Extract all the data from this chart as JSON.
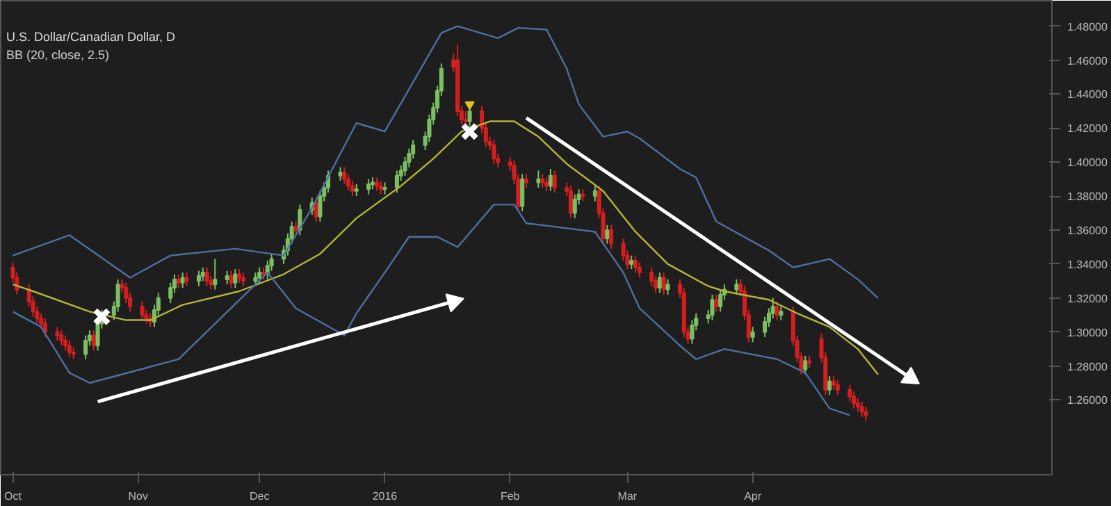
{
  "chart_data": {
    "type": "candlestick",
    "title": "U.S. Dollar/Canadian Dollar, D",
    "subtitle": "BB (20, close, 2.5)",
    "colors": [
      "#d41f1f",
      "#d41f1f",
      "#d41f1f",
      "#d41f1f",
      "#d41f1f",
      "#d41f1f",
      "#d41f1f",
      "#d41f1f",
      "#d41f1f",
      "#d41f1f",
      "#d41f1f",
      "#d41f1f",
      "#7bbf63",
      "#7bbf63",
      "#d41f1f",
      "#7bbf63",
      "#7bbf63",
      "#7bbf63",
      "#7bbf63",
      "#d41f1f",
      "#d41f1f",
      "#d41f1f",
      "#d41f1f",
      "#d41f1f",
      "#d41f1f",
      "#7bbf63",
      "#7bbf63",
      "#7bbf63",
      "#7bbf63",
      "#d41f1f",
      "#7bbf63",
      "#d41f1f",
      "#7bbf63",
      "#7bbf63",
      "#d41f1f",
      "#d41f1f",
      "#7bbf63",
      "#7bbf63",
      "#d41f1f",
      "#7bbf63",
      "#d41f1f",
      "#d41f1f",
      "#7bbf63",
      "#7bbf63",
      "#d41f1f",
      "#7bbf63",
      "#7bbf63",
      "#7bbf63",
      "#7bbf63",
      "#7bbf63",
      "#d41f1f",
      "#7bbf63",
      "#7bbf63",
      "#d41f1f",
      "#7bbf63",
      "#7bbf63",
      "#7bbf63",
      "#7bbf63",
      "#d41f1f",
      "#d41f1f",
      "#d41f1f",
      "#7bbf63",
      "#7bbf63",
      "#7bbf63",
      "#d41f1f",
      "#d41f1f",
      "#7bbf63",
      "#7bbf63",
      "#7bbf63",
      "#7bbf63",
      "#7bbf63",
      "#7bbf63",
      "#7bbf63",
      "#7bbf63",
      "#7bbf63",
      "#7bbf63",
      "#7bbf63",
      "#d41f1f",
      "#d41f1f",
      "#d41f1f",
      "#d41f1f",
      "#7bbf63",
      "#d41f1f",
      "#d41f1f",
      "#d41f1f",
      "#d41f1f",
      "#d41f1f",
      "#d41f1f",
      "#d41f1f",
      "#d41f1f",
      "#7bbf63",
      "#d41f1f",
      "#7bbf63",
      "#d41f1f",
      "#d41f1f",
      "#7bbf63",
      "#d41f1f",
      "#d41f1f",
      "#d41f1f",
      "#7bbf63",
      "#7bbf63",
      "#d41f1f",
      "#7bbf63",
      "#d41f1f",
      "#d41f1f",
      "#7bbf63",
      "#d41f1f",
      "#d41f1f",
      "#d41f1f",
      "#7bbf63",
      "#d41f1f",
      "#d41f1f",
      "#d41f1f",
      "#d41f1f",
      "#7bbf63",
      "#d41f1f",
      "#7bbf63",
      "#d41f1f",
      "#d41f1f",
      "#d41f1f",
      "#7bbf63",
      "#7bbf63",
      "#7bbf63",
      "#7bbf63",
      "#d41f1f",
      "#7bbf63",
      "#7bbf63",
      "#7bbf63",
      "#d41f1f",
      "#d41f1f",
      "#d41f1f",
      "#7bbf63",
      "#7bbf63",
      "#7bbf63",
      "#7bbf63",
      "#d41f1f",
      "#7bbf63",
      "#d41f1f",
      "#d41f1f",
      "#d41f1f",
      "#7bbf63",
      "#d41f1f",
      "#d41f1f",
      "#d41f1f",
      "#7bbf63",
      "#d41f1f",
      "#d41f1f",
      "#d41f1f",
      "#d41f1f",
      "#d41f1f",
      "#d41f1f",
      "#d41f1f"
    ],
    "x": [
      "2015-10-01",
      "2015-10-02",
      "2015-10-05",
      "2015-10-06",
      "2015-10-07",
      "2015-10-08",
      "2015-10-09",
      "2015-10-12",
      "2015-10-13",
      "2015-10-14",
      "2015-10-15",
      "2015-10-16",
      "2015-10-19",
      "2015-10-20",
      "2015-10-21",
      "2015-10-22",
      "2015-10-23",
      "2015-10-26",
      "2015-10-27",
      "2015-10-28",
      "2015-10-29",
      "2015-10-30",
      "2015-11-02",
      "2015-11-03",
      "2015-11-04",
      "2015-11-05",
      "2015-11-06",
      "2015-11-09",
      "2015-11-10",
      "2015-11-11",
      "2015-11-12",
      "2015-11-13",
      "2015-11-16",
      "2015-11-17",
      "2015-11-18",
      "2015-11-19",
      "2015-11-20",
      "2015-11-23",
      "2015-11-24",
      "2015-11-25",
      "2015-11-26",
      "2015-11-27",
      "2015-11-30",
      "2015-12-01",
      "2015-12-02",
      "2015-12-03",
      "2015-12-04",
      "2015-12-07",
      "2015-12-08",
      "2015-12-09",
      "2015-12-10",
      "2015-12-11",
      "2015-12-14",
      "2015-12-15",
      "2015-12-16",
      "2015-12-17",
      "2015-12-18",
      "2015-12-21",
      "2015-12-22",
      "2015-12-23",
      "2015-12-24",
      "2015-12-25",
      "2015-12-28",
      "2015-12-29",
      "2015-12-30",
      "2015-12-31",
      "2016-01-01",
      "2016-01-04",
      "2016-01-05",
      "2016-01-06",
      "2016-01-07",
      "2016-01-08",
      "2016-01-11",
      "2016-01-12",
      "2016-01-13",
      "2016-01-14",
      "2016-01-15",
      "2016-01-18",
      "2016-01-19",
      "2016-01-20",
      "2016-01-21",
      "2016-01-22",
      "2016-01-25",
      "2016-01-26",
      "2016-01-27",
      "2016-01-28",
      "2016-01-29",
      "2016-02-01",
      "2016-02-02",
      "2016-02-03",
      "2016-02-04",
      "2016-02-05",
      "2016-02-08",
      "2016-02-09",
      "2016-02-10",
      "2016-02-11",
      "2016-02-12",
      "2016-02-15",
      "2016-02-16",
      "2016-02-17",
      "2016-02-18",
      "2016-02-19",
      "2016-02-22",
      "2016-02-23",
      "2016-02-24",
      "2016-02-25",
      "2016-02-26",
      "2016-02-29",
      "2016-03-01",
      "2016-03-02",
      "2016-03-03",
      "2016-03-04",
      "2016-03-07",
      "2016-03-08",
      "2016-03-09",
      "2016-03-10",
      "2016-03-11",
      "2016-03-14",
      "2016-03-15",
      "2016-03-16",
      "2016-03-17",
      "2016-03-18",
      "2016-03-21",
      "2016-03-22",
      "2016-03-23",
      "2016-03-24",
      "2016-03-25",
      "2016-03-28",
      "2016-03-29",
      "2016-03-30",
      "2016-03-31",
      "2016-04-01",
      "2016-04-04",
      "2016-04-05",
      "2016-04-06",
      "2016-04-07",
      "2016-04-08",
      "2016-04-11",
      "2016-04-12",
      "2016-04-13",
      "2016-04-14",
      "2016-04-15",
      "2016-04-18",
      "2016-04-19",
      "2016-04-20",
      "2016-04-21",
      "2016-04-22",
      "2016-04-25",
      "2016-04-26",
      "2016-04-27",
      "2016-04-28",
      "2016-04-29"
    ],
    "ohlc": [
      [
        1.338,
        1.341,
        1.329,
        1.332
      ],
      [
        1.332,
        1.335,
        1.322,
        1.325
      ],
      [
        1.325,
        1.328,
        1.315,
        1.318
      ],
      [
        1.318,
        1.321,
        1.309,
        1.312
      ],
      [
        1.312,
        1.315,
        1.305,
        1.308
      ],
      [
        1.308,
        1.311,
        1.302,
        1.305
      ],
      [
        1.305,
        1.308,
        1.297,
        1.3
      ],
      [
        1.3,
        1.303,
        1.295,
        1.298
      ],
      [
        1.298,
        1.301,
        1.292,
        1.295
      ],
      [
        1.295,
        1.298,
        1.289,
        1.292
      ],
      [
        1.292,
        1.295,
        1.285,
        1.288
      ],
      [
        1.288,
        1.291,
        1.284,
        1.287
      ],
      [
        1.287,
        1.298,
        1.284,
        1.295
      ],
      [
        1.295,
        1.301,
        1.292,
        1.298
      ],
      [
        1.298,
        1.301,
        1.289,
        1.292
      ],
      [
        1.292,
        1.308,
        1.289,
        1.305
      ],
      [
        1.305,
        1.313,
        1.302,
        1.31
      ],
      [
        1.31,
        1.318,
        1.307,
        1.315
      ],
      [
        1.315,
        1.331,
        1.312,
        1.328
      ],
      [
        1.328,
        1.331,
        1.323,
        1.326
      ],
      [
        1.326,
        1.329,
        1.317,
        1.32
      ],
      [
        1.32,
        1.323,
        1.312,
        1.315
      ],
      [
        1.315,
        1.318,
        1.307,
        1.31
      ],
      [
        1.31,
        1.313,
        1.305,
        1.308
      ],
      [
        1.308,
        1.311,
        1.303,
        1.306
      ],
      [
        1.306,
        1.316,
        1.303,
        1.313
      ],
      [
        1.313,
        1.323,
        1.31,
        1.32
      ],
      [
        1.32,
        1.329,
        1.317,
        1.326
      ],
      [
        1.326,
        1.334,
        1.323,
        1.331
      ],
      [
        1.331,
        1.334,
        1.326,
        1.329
      ],
      [
        1.329,
        1.335,
        1.326,
        1.332
      ],
      [
        1.332,
        1.335,
        1.327,
        1.33
      ],
      [
        1.33,
        1.336,
        1.327,
        1.333
      ],
      [
        1.333,
        1.338,
        1.33,
        1.335
      ],
      [
        1.335,
        1.338,
        1.327,
        1.33
      ],
      [
        1.33,
        1.333,
        1.325,
        1.328
      ],
      [
        1.328,
        1.343,
        1.325,
        1.331
      ],
      [
        1.331,
        1.336,
        1.328,
        1.333
      ],
      [
        1.333,
        1.336,
        1.326,
        1.329
      ],
      [
        1.329,
        1.337,
        1.326,
        1.334
      ],
      [
        1.334,
        1.337,
        1.329,
        1.332
      ],
      [
        1.332,
        1.335,
        1.327,
        1.33
      ],
      [
        1.33,
        1.335,
        1.327,
        1.332
      ],
      [
        1.332,
        1.338,
        1.329,
        1.335
      ],
      [
        1.335,
        1.338,
        1.331,
        1.334
      ],
      [
        1.334,
        1.342,
        1.331,
        1.339
      ],
      [
        1.339,
        1.346,
        1.336,
        1.343
      ],
      [
        1.343,
        1.351,
        1.34,
        1.348
      ],
      [
        1.348,
        1.358,
        1.345,
        1.355
      ],
      [
        1.355,
        1.365,
        1.352,
        1.362
      ],
      [
        1.362,
        1.365,
        1.357,
        1.36
      ],
      [
        1.36,
        1.375,
        1.357,
        1.372
      ],
      [
        1.372,
        1.379,
        1.369,
        1.376
      ],
      [
        1.376,
        1.379,
        1.365,
        1.368
      ],
      [
        1.368,
        1.383,
        1.365,
        1.38
      ],
      [
        1.38,
        1.388,
        1.377,
        1.385
      ],
      [
        1.385,
        1.395,
        1.382,
        1.392
      ],
      [
        1.392,
        1.397,
        1.389,
        1.394
      ],
      [
        1.394,
        1.397,
        1.387,
        1.39
      ],
      [
        1.39,
        1.393,
        1.383,
        1.386
      ],
      [
        1.386,
        1.389,
        1.38,
        1.383
      ],
      [
        1.383,
        1.387,
        1.38,
        1.384
      ],
      [
        1.384,
        1.39,
        1.381,
        1.387
      ],
      [
        1.387,
        1.391,
        1.384,
        1.388
      ],
      [
        1.388,
        1.391,
        1.383,
        1.386
      ],
      [
        1.386,
        1.389,
        1.381,
        1.384
      ],
      [
        1.384,
        1.388,
        1.381,
        1.385
      ],
      [
        1.385,
        1.395,
        1.382,
        1.392
      ],
      [
        1.392,
        1.398,
        1.389,
        1.395
      ],
      [
        1.395,
        1.403,
        1.392,
        1.4
      ],
      [
        1.4,
        1.408,
        1.397,
        1.405
      ],
      [
        1.405,
        1.413,
        1.402,
        1.41
      ],
      [
        1.41,
        1.418,
        1.407,
        1.415
      ],
      [
        1.415,
        1.428,
        1.412,
        1.425
      ],
      [
        1.425,
        1.435,
        1.422,
        1.432
      ],
      [
        1.432,
        1.445,
        1.429,
        1.442
      ],
      [
        1.442,
        1.458,
        1.439,
        1.455
      ],
      [
        1.46,
        1.464,
        1.453,
        1.456
      ],
      [
        1.46,
        1.469,
        1.427,
        1.43
      ],
      [
        1.43,
        1.433,
        1.422,
        1.425
      ],
      [
        1.425,
        1.43,
        1.42,
        1.424
      ],
      [
        1.424,
        1.433,
        1.421,
        1.43
      ],
      [
        1.43,
        1.433,
        1.417,
        1.42
      ],
      [
        1.42,
        1.423,
        1.409,
        1.412
      ],
      [
        1.412,
        1.415,
        1.407,
        1.41
      ],
      [
        1.41,
        1.413,
        1.399,
        1.402
      ],
      [
        1.402,
        1.405,
        1.397,
        1.4
      ],
      [
        1.4,
        1.403,
        1.395,
        1.398
      ],
      [
        1.398,
        1.401,
        1.387,
        1.39
      ],
      [
        1.39,
        1.393,
        1.371,
        1.374
      ],
      [
        1.374,
        1.393,
        1.371,
        1.39
      ],
      [
        1.39,
        1.393,
        1.385,
        1.388
      ],
      [
        1.388,
        1.395,
        1.385,
        1.39
      ],
      [
        1.39,
        1.393,
        1.385,
        1.388
      ],
      [
        1.388,
        1.391,
        1.383,
        1.386
      ],
      [
        1.386,
        1.396,
        1.383,
        1.392
      ],
      [
        1.392,
        1.395,
        1.382,
        1.385
      ],
      [
        1.385,
        1.388,
        1.38,
        1.383
      ],
      [
        1.383,
        1.386,
        1.367,
        1.37
      ],
      [
        1.37,
        1.381,
        1.367,
        1.378
      ],
      [
        1.378,
        1.384,
        1.375,
        1.381
      ],
      [
        1.381,
        1.384,
        1.377,
        1.38
      ],
      [
        1.38,
        1.386,
        1.377,
        1.383
      ],
      [
        1.383,
        1.386,
        1.367,
        1.37
      ],
      [
        1.37,
        1.373,
        1.352,
        1.355
      ],
      [
        1.355,
        1.363,
        1.352,
        1.36
      ],
      [
        1.36,
        1.363,
        1.349,
        1.352
      ],
      [
        1.352,
        1.355,
        1.342,
        1.345
      ],
      [
        1.345,
        1.348,
        1.337,
        1.34
      ],
      [
        1.34,
        1.345,
        1.337,
        1.342
      ],
      [
        1.342,
        1.345,
        1.335,
        1.338
      ],
      [
        1.338,
        1.341,
        1.332,
        1.335
      ],
      [
        1.335,
        1.338,
        1.327,
        1.33
      ],
      [
        1.33,
        1.333,
        1.323,
        1.326
      ],
      [
        1.326,
        1.335,
        1.323,
        1.332
      ],
      [
        1.332,
        1.335,
        1.322,
        1.325
      ],
      [
        1.325,
        1.331,
        1.322,
        1.328
      ],
      [
        1.328,
        1.331,
        1.32,
        1.323
      ],
      [
        1.323,
        1.326,
        1.297,
        1.3
      ],
      [
        1.3,
        1.303,
        1.293,
        1.296
      ],
      [
        1.296,
        1.307,
        1.293,
        1.304
      ],
      [
        1.304,
        1.311,
        1.301,
        1.308
      ],
      [
        1.308,
        1.313,
        1.305,
        1.31
      ],
      [
        1.31,
        1.322,
        1.307,
        1.319
      ],
      [
        1.319,
        1.322,
        1.312,
        1.315
      ],
      [
        1.315,
        1.325,
        1.312,
        1.322
      ],
      [
        1.322,
        1.328,
        1.319,
        1.325
      ],
      [
        1.325,
        1.331,
        1.322,
        1.328
      ],
      [
        1.328,
        1.331,
        1.321,
        1.324
      ],
      [
        1.324,
        1.327,
        1.307,
        1.31
      ],
      [
        1.31,
        1.313,
        1.294,
        1.297
      ],
      [
        1.297,
        1.303,
        1.294,
        1.3
      ],
      [
        1.3,
        1.309,
        1.297,
        1.306
      ],
      [
        1.306,
        1.314,
        1.303,
        1.311
      ],
      [
        1.311,
        1.32,
        1.308,
        1.315
      ],
      [
        1.315,
        1.318,
        1.307,
        1.31
      ],
      [
        1.31,
        1.315,
        1.307,
        1.312
      ],
      [
        1.312,
        1.315,
        1.292,
        1.295
      ],
      [
        1.295,
        1.298,
        1.282,
        1.285
      ],
      [
        1.285,
        1.288,
        1.275,
        1.278
      ],
      [
        1.278,
        1.286,
        1.275,
        1.283
      ],
      [
        1.283,
        1.286,
        1.279,
        1.282
      ],
      [
        1.296,
        1.299,
        1.282,
        1.285
      ],
      [
        1.285,
        1.288,
        1.263,
        1.266
      ],
      [
        1.266,
        1.274,
        1.263,
        1.271
      ],
      [
        1.271,
        1.274,
        1.266,
        1.269
      ],
      [
        1.269,
        1.272,
        1.263,
        1.266
      ],
      [
        1.266,
        1.269,
        1.259,
        1.262
      ],
      [
        1.262,
        1.265,
        1.255,
        1.258
      ],
      [
        1.258,
        1.261,
        1.253,
        1.256
      ],
      [
        1.256,
        1.259,
        1.25,
        1.253
      ],
      [
        1.253,
        1.256,
        1.248,
        1.251
      ]
    ],
    "series": [
      {
        "type": "line",
        "color": "#4f6f9f",
        "x": [
          "2015-10-01",
          "2015-10-15",
          "2015-10-30",
          "2015-11-09",
          "2015-11-25",
          "2015-12-07",
          "2015-12-14",
          "2015-12-21",
          "2015-12-25",
          "2016-01-01",
          "2016-01-15",
          "2016-01-19",
          "2016-01-29",
          "2016-02-03",
          "2016-02-10",
          "2016-02-15",
          "2016-02-18",
          "2016-02-24",
          "2016-03-01",
          "2016-03-04",
          "2016-03-14",
          "2016-03-18",
          "2016-03-23",
          "2016-04-05",
          "2016-04-11",
          "2016-04-20",
          "2016-04-27",
          "2016-05-02"
        ],
        "values": [
          1.345,
          1.357,
          1.332,
          1.345,
          1.349,
          1.345,
          1.373,
          1.405,
          1.423,
          1.418,
          1.476,
          1.48,
          1.473,
          1.479,
          1.478,
          1.455,
          1.434,
          1.415,
          1.418,
          1.414,
          1.396,
          1.391,
          1.365,
          1.348,
          1.338,
          1.343,
          1.331,
          1.32
        ]
      },
      {
        "type": "line",
        "color": "#b5b43a",
        "x": [
          "2015-10-01",
          "2015-10-06",
          "2015-10-20",
          "2015-10-29",
          "2015-11-04",
          "2015-11-12",
          "2015-11-26",
          "2015-12-07",
          "2015-12-16",
          "2015-12-25",
          "2016-01-05",
          "2016-01-13",
          "2016-01-20",
          "2016-01-27",
          "2016-02-02",
          "2016-02-08",
          "2016-02-15",
          "2016-02-24",
          "2016-03-03",
          "2016-03-11",
          "2016-03-21",
          "2016-03-25",
          "2016-04-05",
          "2016-04-12",
          "2016-04-20",
          "2016-04-27",
          "2016-05-02"
        ],
        "values": [
          1.328,
          1.324,
          1.312,
          1.307,
          1.307,
          1.316,
          1.324,
          1.334,
          1.346,
          1.367,
          1.386,
          1.402,
          1.418,
          1.424,
          1.424,
          1.415,
          1.399,
          1.383,
          1.359,
          1.34,
          1.327,
          1.324,
          1.319,
          1.311,
          1.303,
          1.29,
          1.275
        ]
      },
      {
        "type": "line",
        "color": "#4f6f9f",
        "x": [
          "2015-10-01",
          "2015-10-08",
          "2015-10-15",
          "2015-10-20",
          "2015-11-11",
          "2015-12-03",
          "2015-12-10",
          "2015-12-22",
          "2015-12-25",
          "2016-01-01",
          "2016-01-07",
          "2016-01-14",
          "2016-01-19",
          "2016-01-28",
          "2016-02-02",
          "2016-02-05",
          "2016-02-12",
          "2016-02-22",
          "2016-02-29",
          "2016-03-04",
          "2016-03-14",
          "2016-03-18",
          "2016-03-25",
          "2016-04-07",
          "2016-04-14",
          "2016-04-20",
          "2016-04-25"
        ],
        "values": [
          1.312,
          1.303,
          1.276,
          1.27,
          1.284,
          1.335,
          1.314,
          1.298,
          1.311,
          1.335,
          1.356,
          1.356,
          1.35,
          1.375,
          1.375,
          1.364,
          1.362,
          1.359,
          1.335,
          1.314,
          1.292,
          1.284,
          1.29,
          1.284,
          1.276,
          1.255,
          1.251
        ]
      },
      {
        "type": "scatter",
        "marker": "cross",
        "color": "#ffffff",
        "x": [
          "2015-10-23",
          "2016-01-22"
        ],
        "values": [
          1.309,
          1.418
        ]
      },
      {
        "type": "scatter",
        "marker": "triangle",
        "color": "#e0c020",
        "x": [
          "2016-01-22"
        ],
        "values": [
          1.434
        ]
      },
      {
        "type": "line",
        "color": "#ffffff",
        "x": [
          "2015-10-22",
          "2016-01-18"
        ],
        "values": [
          1.259,
          1.318
        ]
      },
      {
        "type": "line",
        "color": "#ffffff",
        "x": [
          "2016-02-05",
          "2016-05-10"
        ],
        "values": [
          1.426,
          1.273
        ]
      }
    ],
    "xlim": [
      "2015-09-28",
      "2016-06-14"
    ],
    "xticks": [
      {
        "value": "2015-10-01",
        "label": "Oct"
      },
      {
        "value": "2015-11-01",
        "label": "Nov"
      },
      {
        "value": "2015-12-01",
        "label": "Dec"
      },
      {
        "value": "2016-01-01",
        "label": "2016"
      },
      {
        "value": "2016-02-01",
        "label": "Feb"
      },
      {
        "value": "2016-03-01",
        "label": "Mar"
      },
      {
        "value": "2016-04-01",
        "label": "Apr"
      }
    ],
    "ylim": [
      1.216,
      1.495
    ],
    "yticks": [
      {
        "value": 1.26,
        "label": "1.26000"
      },
      {
        "value": 1.28,
        "label": "1.28000"
      },
      {
        "value": 1.3,
        "label": "1.30000"
      },
      {
        "value": 1.32,
        "label": "1.32000"
      },
      {
        "value": 1.34,
        "label": "1.34000"
      },
      {
        "value": 1.36,
        "label": "1.36000"
      },
      {
        "value": 1.38,
        "label": "1.38000"
      },
      {
        "value": 1.4,
        "label": "1.40000"
      },
      {
        "value": 1.42,
        "label": "1.42000"
      },
      {
        "value": 1.44,
        "label": "1.44000"
      },
      {
        "value": 1.46,
        "label": "1.46000"
      },
      {
        "value": 1.48,
        "label": "1.48000"
      }
    ]
  }
}
